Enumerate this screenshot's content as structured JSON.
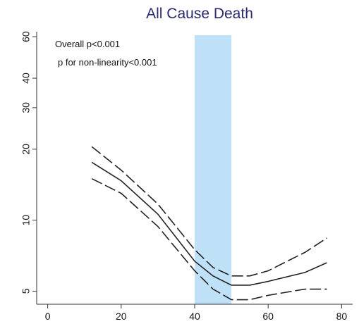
{
  "chart_data": {
    "type": "line",
    "title": "All Cause Death",
    "annotations": [
      "Overall p<0.001",
      "p for non-linearity<0.001"
    ],
    "x": [
      12,
      20,
      30,
      40,
      45,
      50,
      55,
      60,
      70,
      76
    ],
    "series": [
      {
        "color": "#222222",
        "dash": false,
        "values": [
          17.6,
          14.7,
          10.6,
          6.7,
          5.8,
          5.3,
          5.3,
          5.5,
          6.0,
          6.6
        ]
      },
      {
        "color": "#222222",
        "dash": true,
        "values": [
          20.5,
          16.3,
          11.7,
          7.5,
          6.3,
          5.8,
          5.8,
          6.1,
          7.3,
          8.4
        ]
      },
      {
        "color": "#222222",
        "dash": true,
        "values": [
          15.0,
          13.0,
          9.4,
          6.1,
          5.1,
          4.6,
          4.6,
          4.8,
          5.1,
          5.1
        ]
      }
    ],
    "shaded_region": [
      40,
      50
    ],
    "shaded_color": "#bfe1f7",
    "log_y": true,
    "grid": false,
    "xlim": [
      -3,
      83
    ],
    "xticks": [
      0,
      20,
      40,
      60,
      80
    ],
    "ylim": [
      4.4,
      63
    ],
    "yticks": [
      5,
      10,
      20,
      30,
      40,
      60
    ]
  }
}
